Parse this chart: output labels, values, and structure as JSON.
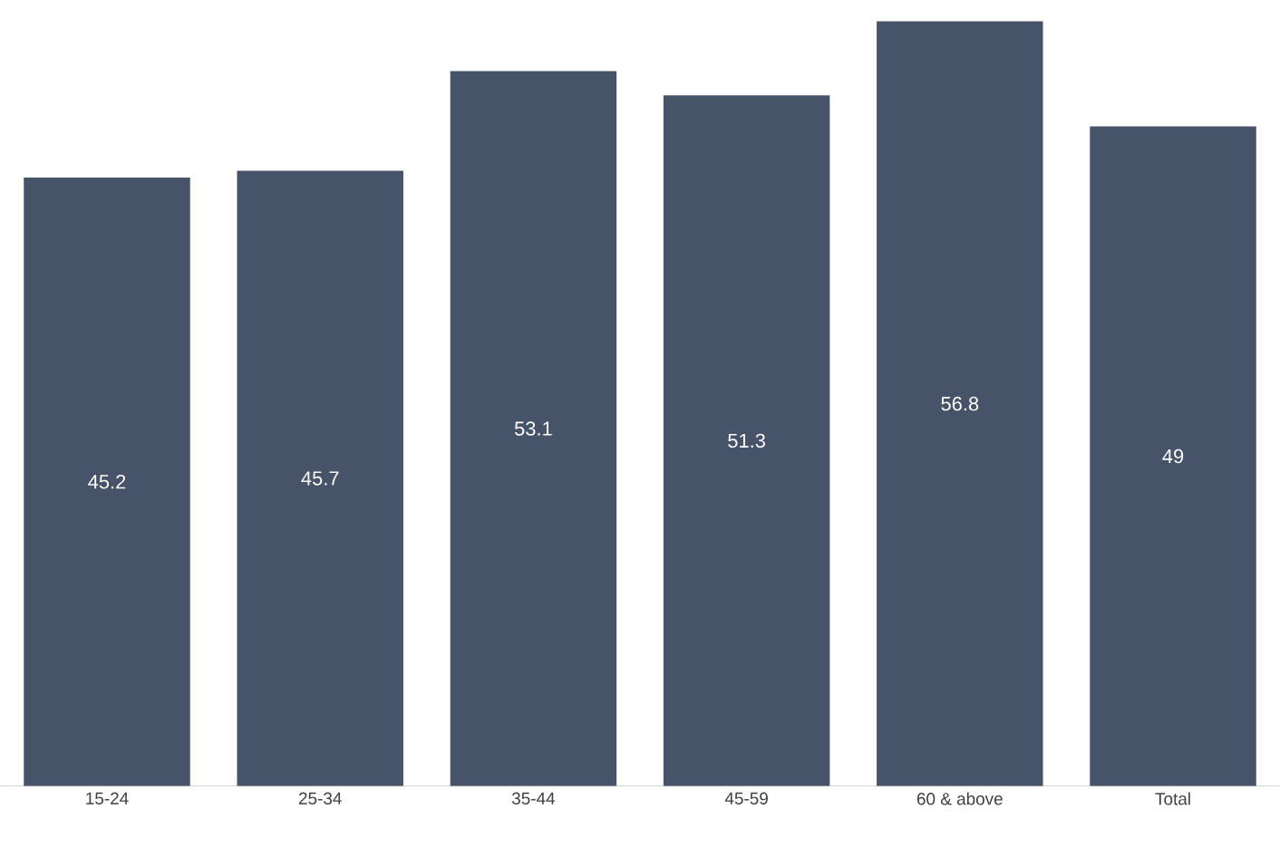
{
  "chart_data": {
    "type": "bar",
    "categories": [
      "15-24",
      "25-34",
      "35-44",
      "45-59",
      "60 & above",
      "Total"
    ],
    "values": [
      45.2,
      45.7,
      53.1,
      51.3,
      56.8,
      49
    ],
    "color": "#465369",
    "data_labels": true
  }
}
